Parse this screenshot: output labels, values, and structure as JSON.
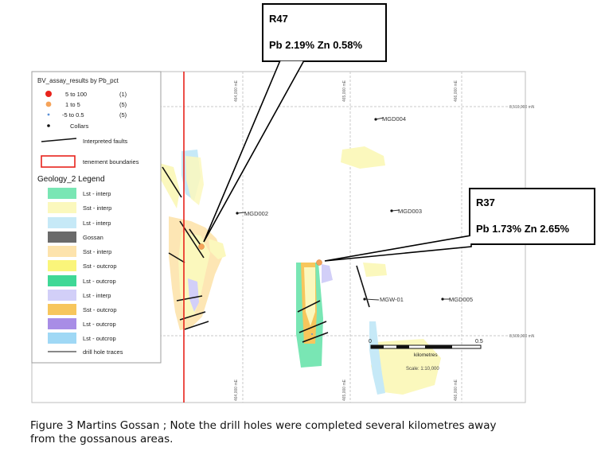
{
  "legend": {
    "title": "BV_assay_results by Pb_pct",
    "assay_classes": [
      {
        "label": "5  to  100",
        "count": "(1)",
        "color": "#e8231c"
      },
      {
        "label": "1  to     5",
        "count": "(5)",
        "color": "#f5a35a"
      },
      {
        "label": "-5  to   0.5",
        "count": "(5)",
        "color": "#5a8fd6"
      }
    ],
    "collars": "Collars",
    "faults": "Interpreted faults",
    "tenement": "tenement boundaries",
    "geology_title": "Geology_2 Legend",
    "geology": [
      {
        "label": "Lst - interp",
        "color": "#79e6b4"
      },
      {
        "label": "Sst - interp",
        "color": "#fbf8bd"
      },
      {
        "label": "Lst - interp",
        "color": "#c6e9f7"
      },
      {
        "label": "Gossan",
        "color": "#6a6a6a"
      },
      {
        "label": "Sst - interp",
        "color": "#fde3ac"
      },
      {
        "label": "Sst - outcrop",
        "color": "#faf57a"
      },
      {
        "label": "Lst - outcrop",
        "color": "#3fd896"
      },
      {
        "label": "Lst - interp",
        "color": "#d2cff8"
      },
      {
        "label": "Sst - outcrop",
        "color": "#f7c65c"
      },
      {
        "label": "Lst - outcrop",
        "color": "#a88de6"
      },
      {
        "label": "Lst - outcrop",
        "color": "#9fd8f5"
      }
    ],
    "drill_traces": "drill hole traces"
  },
  "callouts": {
    "r47": {
      "title": "R47",
      "text": "Pb 2.19% Zn 0.58%"
    },
    "r37": {
      "title": "R37",
      "text": "Pb 1.73% Zn 2.65%"
    }
  },
  "drillholes": {
    "mgd004": "MGD004",
    "mgd002": "MGD002",
    "mgd003": "MGD003",
    "mgw01": "MGW-01",
    "mgd005": "MGD005"
  },
  "grid_labels": {
    "north_top": "8,510,000 mN",
    "north_bottom": "8,509,000 mN",
    "e1": "464,000 mE",
    "e2": "465,000 mE",
    "e3": "466,000 mE"
  },
  "scale": {
    "zero": "0",
    "half": "0.5",
    "unit": "kilometres",
    "ratio": "Scale: 1:10,000"
  },
  "caption": {
    "line1": "Figure 3 Martins Gossan ; Note the drill holes were completed several kilometres away",
    "line2": "from the gossanous areas."
  }
}
